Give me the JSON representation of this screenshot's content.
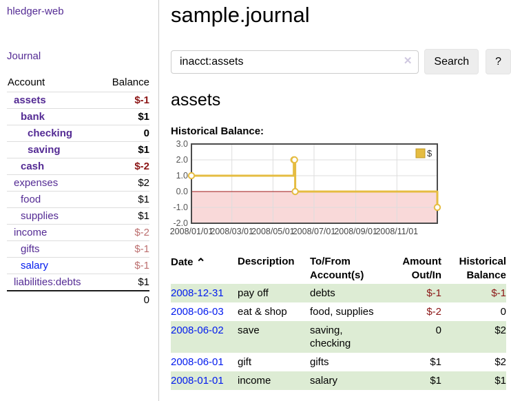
{
  "app": {
    "title": "hledger-web"
  },
  "nav": {
    "journal_label": "Journal"
  },
  "sidebar": {
    "columns": {
      "account": "Account",
      "balance": "Balance"
    },
    "accounts": [
      {
        "name": "assets",
        "indent": 1,
        "balance": "$-1",
        "bold": true,
        "balance_style": "neg-strong",
        "link_color": "visited"
      },
      {
        "name": "bank",
        "indent": 2,
        "balance": "$1",
        "bold": true,
        "balance_style": "normal",
        "link_color": "visited"
      },
      {
        "name": "checking",
        "indent": 3,
        "balance": "0",
        "bold": true,
        "balance_style": "normal",
        "link_color": "visited"
      },
      {
        "name": "saving",
        "indent": 3,
        "balance": "$1",
        "bold": true,
        "balance_style": "normal",
        "link_color": "visited"
      },
      {
        "name": "cash",
        "indent": 2,
        "balance": "$-2",
        "bold": true,
        "balance_style": "neg-strong",
        "link_color": "visited"
      },
      {
        "name": "expenses",
        "indent": 1,
        "balance": "$2",
        "bold": false,
        "balance_style": "normal",
        "link_color": "visited"
      },
      {
        "name": "food",
        "indent": 2,
        "balance": "$1",
        "bold": false,
        "balance_style": "normal",
        "link_color": "visited"
      },
      {
        "name": "supplies",
        "indent": 2,
        "balance": "$1",
        "bold": false,
        "balance_style": "normal",
        "link_color": "visited"
      },
      {
        "name": "income",
        "indent": 1,
        "balance": "$-2",
        "bold": false,
        "balance_style": "neg-soft",
        "link_color": "visited"
      },
      {
        "name": "gifts",
        "indent": 2,
        "balance": "$-1",
        "bold": false,
        "balance_style": "neg-soft",
        "link_color": "visited"
      },
      {
        "name": "salary",
        "indent": 2,
        "balance": "$-1",
        "bold": false,
        "balance_style": "neg-soft",
        "link_color": "new"
      },
      {
        "name": "liabilities:debts",
        "indent": 1,
        "balance": "$1",
        "bold": false,
        "balance_style": "normal",
        "link_color": "visited"
      }
    ],
    "total": "0"
  },
  "main": {
    "page_title": "sample.journal",
    "search": {
      "value": "inacct:assets",
      "clear_icon": "✕",
      "button_label": "Search",
      "help_label": "?"
    },
    "account_heading": "assets",
    "chart_label": "Historical Balance:"
  },
  "chart_data": {
    "type": "line",
    "step": true,
    "title": "Historical Balance:",
    "series": [
      {
        "name": "$",
        "points": [
          [
            "2008-01-01",
            1
          ],
          [
            "2008-06-01",
            2
          ],
          [
            "2008-06-02",
            2
          ],
          [
            "2008-06-03",
            0
          ],
          [
            "2008-12-31",
            -1
          ]
        ]
      }
    ],
    "xlim": [
      "2008-01-01",
      "2008-12-31"
    ],
    "ylim": [
      -2,
      3
    ],
    "x_ticks": [
      "2008/01/01",
      "2008/03/01",
      "2008/05/01",
      "2008/07/01",
      "2008/09/01",
      "2008/11/01"
    ],
    "y_ticks": [
      3.0,
      2.0,
      1.0,
      0.0,
      -1.0,
      -2.0
    ],
    "grid": true,
    "legend_position": "top-right"
  },
  "register": {
    "columns": [
      "Date",
      "Description",
      "To/From Account(s)",
      "Amount Out/In",
      "Historical Balance"
    ],
    "sort_icon_glyph": "⌃",
    "rows": [
      {
        "date": "2008-12-31",
        "description": "pay off",
        "accounts": "debts",
        "amount": "$-1",
        "amount_negative": true,
        "balance": "$-1",
        "balance_negative": true,
        "highlight": true
      },
      {
        "date": "2008-06-03",
        "description": "eat & shop",
        "accounts": "food, supplies",
        "amount": "$-2",
        "amount_negative": true,
        "balance": "0",
        "balance_negative": false,
        "highlight": false
      },
      {
        "date": "2008-06-02",
        "description": "save",
        "accounts": "saving, checking",
        "amount": "0",
        "amount_negative": false,
        "balance": "$2",
        "balance_negative": false,
        "highlight": true
      },
      {
        "date": "2008-06-01",
        "description": "gift",
        "accounts": "gifts",
        "amount": "$1",
        "amount_negative": false,
        "balance": "$2",
        "balance_negative": false,
        "highlight": false
      },
      {
        "date": "2008-01-01",
        "description": "income",
        "accounts": "salary",
        "amount": "$1",
        "amount_negative": false,
        "balance": "$1",
        "balance_negative": false,
        "highlight": true
      }
    ]
  },
  "colors": {
    "link_visited": "#542b94",
    "link_new": "#0019ee",
    "neg_strong": "#8b1515",
    "neg_soft": "#bc6f6f",
    "row_green": "#ddecd4",
    "chart_line": "#e5bc41",
    "chart_line_border": "#c09a28",
    "chart_negative_fill": "#f9d9d9",
    "chart_zero_line": "#9e1616",
    "chart_grid": "#dddddd",
    "chart_border": "#4a4a4a",
    "chart_tick_text": "#555555"
  }
}
